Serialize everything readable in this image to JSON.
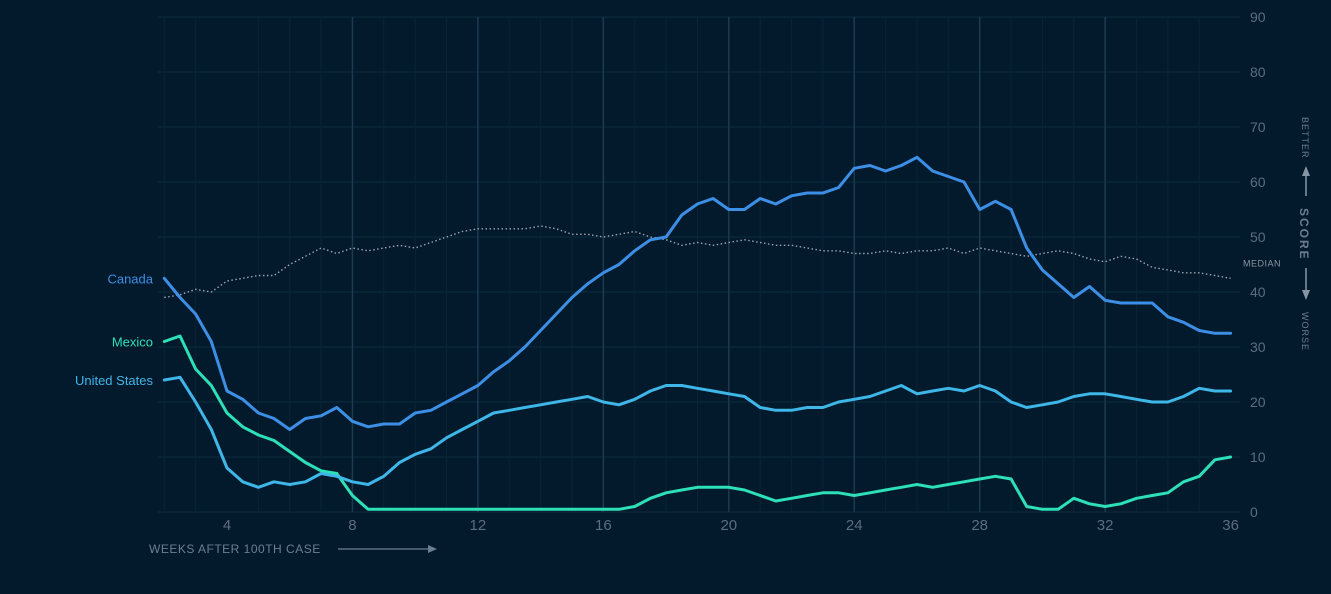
{
  "chart_data": {
    "type": "line",
    "xlabel": "WEEKS AFTER 100TH CASE",
    "ylabel": "SCORE",
    "ylabel_top": "BETTER",
    "ylabel_bottom": "WORSE",
    "xlim": [
      1.8,
      36.3
    ],
    "ylim": [
      0,
      90
    ],
    "xticks": [
      4,
      8,
      12,
      16,
      20,
      24,
      28,
      32,
      36
    ],
    "yticks": [
      0,
      10,
      20,
      30,
      40,
      50,
      60,
      70,
      80,
      90
    ],
    "grid": true,
    "legend": "inline-left",
    "reference": {
      "label": "MEDIAN",
      "color": "#9aa5b1",
      "x": [
        2.0,
        2.5,
        3.0,
        3.5,
        4.0,
        4.5,
        5.0,
        5.5,
        6.0,
        6.5,
        7.0,
        7.5,
        8.0,
        8.5,
        9.0,
        9.5,
        10.0,
        10.5,
        11.0,
        11.5,
        12.0,
        12.5,
        13.0,
        13.5,
        14.0,
        14.5,
        15.0,
        15.5,
        16.0,
        16.5,
        17.0,
        17.5,
        18.0,
        18.5,
        19.0,
        19.5,
        20.0,
        20.5,
        21.0,
        21.5,
        22.0,
        22.5,
        23.0,
        23.5,
        24.0,
        24.5,
        25.0,
        25.5,
        26.0,
        26.5,
        27.0,
        27.5,
        28.0,
        28.5,
        29.0,
        29.5,
        30.0,
        30.5,
        31.0,
        31.5,
        32.0,
        32.5,
        33.0,
        33.5,
        34.0,
        34.5,
        35.0,
        35.5,
        36.0
      ],
      "values": [
        39,
        39.5,
        40.5,
        40,
        42,
        42.5,
        43,
        43,
        45,
        46.5,
        48,
        47,
        48,
        47.5,
        48,
        48.5,
        48,
        49,
        50,
        51,
        51.5,
        51.5,
        51.5,
        51.5,
        52,
        51.5,
        50.5,
        50.5,
        50,
        50.5,
        51,
        50,
        49.5,
        48.5,
        49,
        48.5,
        49,
        49.5,
        49,
        48.5,
        48.5,
        48,
        47.5,
        47.5,
        47,
        47,
        47.5,
        47,
        47.5,
        47.5,
        48,
        47,
        48,
        47.5,
        47,
        46.5,
        47,
        47.5,
        47,
        46,
        45.5,
        46.5,
        46,
        44.5,
        44,
        43.5,
        43.5,
        43,
        42.5
      ]
    },
    "series": [
      {
        "name": "Canada",
        "color": "#3d8fe6",
        "x": [
          2.0,
          2.5,
          3.0,
          3.5,
          4.0,
          4.5,
          5.0,
          5.5,
          6.0,
          6.5,
          7.0,
          7.5,
          8.0,
          8.5,
          9.0,
          9.5,
          10.0,
          10.5,
          11.0,
          11.5,
          12.0,
          12.5,
          13.0,
          13.5,
          14.0,
          14.5,
          15.0,
          15.5,
          16.0,
          16.5,
          17.0,
          17.5,
          18.0,
          18.5,
          19.0,
          19.5,
          20.0,
          20.5,
          21.0,
          21.5,
          22.0,
          22.5,
          23.0,
          23.5,
          24.0,
          24.5,
          25.0,
          25.5,
          26.0,
          26.5,
          27.0,
          27.5,
          28.0,
          28.5,
          29.0,
          29.5,
          30.0,
          30.5,
          31.0,
          31.5,
          32.0,
          32.5,
          33.0,
          33.5,
          34.0,
          34.5,
          35.0,
          35.5,
          36.0
        ],
        "values": [
          42.5,
          39,
          36,
          31,
          22,
          20.5,
          18,
          17,
          15,
          17,
          17.5,
          19,
          16.5,
          15.5,
          16,
          16,
          18,
          18.5,
          20,
          21.5,
          23,
          25.5,
          27.5,
          30,
          33,
          36,
          39,
          41.5,
          43.5,
          45,
          47.5,
          49.5,
          50,
          54,
          56,
          57,
          55,
          55,
          57,
          56,
          57.5,
          58,
          58,
          59,
          62.5,
          63,
          62,
          63,
          64.5,
          62,
          61,
          60,
          55,
          56.5,
          55,
          48,
          44,
          41.5,
          39,
          41,
          38.5,
          38,
          38,
          38,
          35.5,
          34.5,
          33,
          32.5,
          32.5
        ]
      },
      {
        "name": "Mexico",
        "color": "#2de0b8",
        "x": [
          2.0,
          2.5,
          3.0,
          3.5,
          4.0,
          4.5,
          5.0,
          5.5,
          6.0,
          6.5,
          7.0,
          7.5,
          8.0,
          8.5,
          9.0,
          10.0,
          11.0,
          12.0,
          13.0,
          14.0,
          15.0,
          16.0,
          16.5,
          17.0,
          17.5,
          18.0,
          18.5,
          19.0,
          19.5,
          20.0,
          20.5,
          21.0,
          21.5,
          22.0,
          22.5,
          23.0,
          23.5,
          24.0,
          24.5,
          25.0,
          25.5,
          26.0,
          26.5,
          27.0,
          27.5,
          28.0,
          28.5,
          29.0,
          29.5,
          30.0,
          30.5,
          31.0,
          31.5,
          32.0,
          32.5,
          33.0,
          33.5,
          34.0,
          34.5,
          35.0,
          35.5,
          36.0
        ],
        "values": [
          31,
          32,
          26,
          23,
          18,
          15.5,
          14,
          13,
          11,
          9,
          7.5,
          7,
          3,
          0.5,
          0.5,
          0.5,
          0.5,
          0.5,
          0.5,
          0.5,
          0.5,
          0.5,
          0.5,
          1,
          2.5,
          3.5,
          4,
          4.5,
          4.5,
          4.5,
          4,
          3,
          2,
          2.5,
          3,
          3.5,
          3.5,
          3,
          3.5,
          4,
          4.5,
          5,
          4.5,
          5,
          5.5,
          6,
          6.5,
          6,
          1,
          0.5,
          0.5,
          2.5,
          1.5,
          1,
          1.5,
          2.5,
          3,
          3.5,
          5.5,
          6.5,
          9.5,
          10
        ]
      },
      {
        "name": "United States",
        "color": "#3fb6e8",
        "x": [
          2.0,
          2.5,
          3.0,
          3.5,
          4.0,
          4.5,
          5.0,
          5.5,
          6.0,
          6.5,
          7.0,
          7.5,
          8.0,
          8.5,
          9.0,
          9.5,
          10.0,
          10.5,
          11.0,
          11.5,
          12.0,
          12.5,
          13.0,
          13.5,
          14.0,
          14.5,
          15.0,
          15.5,
          16.0,
          16.5,
          17.0,
          17.5,
          18.0,
          18.5,
          19.0,
          19.5,
          20.0,
          20.5,
          21.0,
          21.5,
          22.0,
          22.5,
          23.0,
          23.5,
          24.0,
          24.5,
          25.0,
          25.5,
          26.0,
          26.5,
          27.0,
          27.5,
          28.0,
          28.5,
          29.0,
          29.5,
          30.0,
          30.5,
          31.0,
          31.5,
          32.0,
          32.5,
          33.0,
          33.5,
          34.0,
          34.5,
          35.0,
          35.5,
          36.0
        ],
        "values": [
          24,
          24.5,
          20,
          15,
          8,
          5.5,
          4.5,
          5.5,
          5,
          5.5,
          7,
          6.5,
          5.5,
          5,
          6.5,
          9,
          10.5,
          11.5,
          13.5,
          15,
          16.5,
          18,
          18.5,
          19,
          19.5,
          20,
          20.5,
          21,
          20,
          19.5,
          20.5,
          22,
          23,
          23,
          22.5,
          22,
          21.5,
          21,
          19,
          18.5,
          18.5,
          19,
          19,
          20,
          20.5,
          21,
          22,
          23,
          21.5,
          22,
          22.5,
          22,
          23,
          22,
          20,
          19,
          19.5,
          20,
          21,
          21.5,
          21.5,
          21,
          20.5,
          20,
          20,
          21,
          22.5,
          22,
          22
        ]
      }
    ]
  }
}
